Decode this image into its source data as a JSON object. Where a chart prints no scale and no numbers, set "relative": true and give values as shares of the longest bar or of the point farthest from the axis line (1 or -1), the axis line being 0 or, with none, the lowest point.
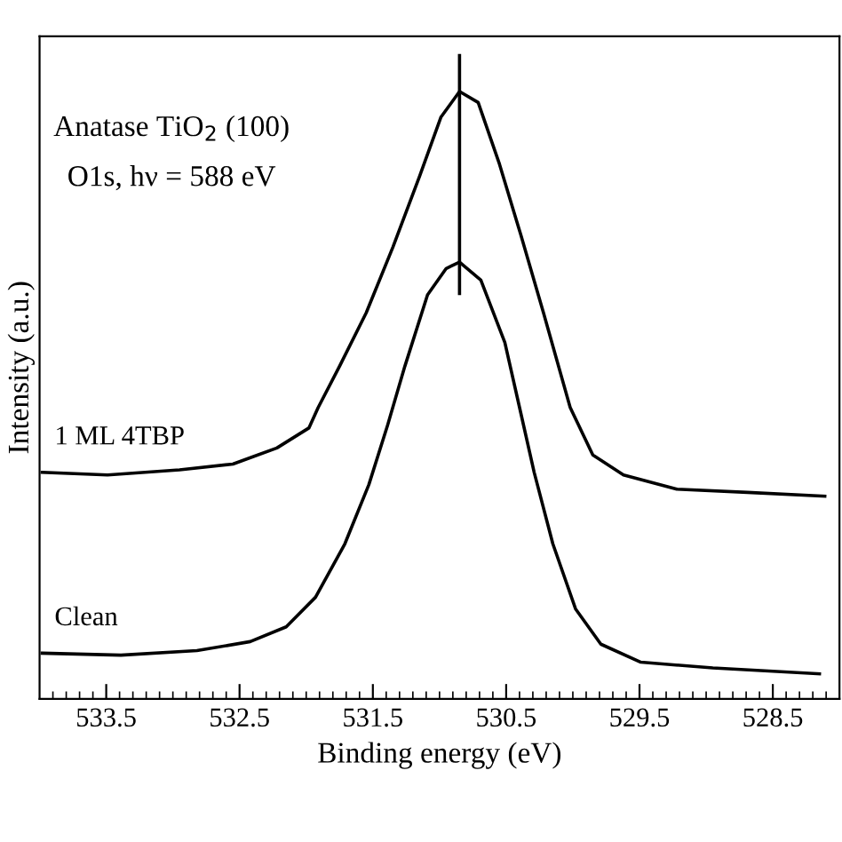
{
  "chart_data": {
    "type": "line",
    "relative": true,
    "xlabel": "Binding energy (eV)",
    "ylabel": "Intensity (a.u.)",
    "annotations": [
      "Anatase TiO$_{2}$ (100)",
      "O1s, hν = 588 eV"
    ],
    "xlim": [
      534.0,
      528.0
    ],
    "xticks": [
      {
        "value": 533.9,
        "label": null
      },
      {
        "value": 533.8,
        "label": null
      },
      {
        "value": 533.7,
        "label": null
      },
      {
        "value": 533.6,
        "label": null
      },
      533.5,
      {
        "value": 533.4,
        "label": null
      },
      {
        "value": 533.3,
        "label": null
      },
      {
        "value": 533.2,
        "label": null
      },
      {
        "value": 533.1,
        "label": null
      },
      {
        "value": 533.0,
        "label": null
      },
      {
        "value": 532.9,
        "label": null
      },
      {
        "value": 532.8,
        "label": null
      },
      {
        "value": 532.7,
        "label": null
      },
      {
        "value": 532.6,
        "label": null
      },
      532.5,
      {
        "value": 532.4,
        "label": null
      },
      {
        "value": 532.3,
        "label": null
      },
      {
        "value": 532.2,
        "label": null
      },
      {
        "value": 532.1,
        "label": null
      },
      {
        "value": 532.0,
        "label": null
      },
      {
        "value": 531.9,
        "label": null
      },
      {
        "value": 531.8,
        "label": null
      },
      {
        "value": 531.7,
        "label": null
      },
      {
        "value": 531.6,
        "label": null
      },
      531.5,
      {
        "value": 531.4,
        "label": null
      },
      {
        "value": 531.3,
        "label": null
      },
      {
        "value": 531.2,
        "label": null
      },
      {
        "value": 531.1,
        "label": null
      },
      {
        "value": 531.0,
        "label": null
      },
      {
        "value": 530.9,
        "label": null
      },
      {
        "value": 530.8,
        "label": null
      },
      {
        "value": 530.7,
        "label": null
      },
      {
        "value": 530.6,
        "label": null
      },
      530.5,
      {
        "value": 530.4,
        "label": null
      },
      {
        "value": 530.3,
        "label": null
      },
      {
        "value": 530.2,
        "label": null
      },
      {
        "value": 530.1,
        "label": null
      },
      {
        "value": 530.0,
        "label": null
      },
      {
        "value": 529.9,
        "label": null
      },
      {
        "value": 529.8,
        "label": null
      },
      {
        "value": 529.7,
        "label": null
      },
      {
        "value": 529.6,
        "label": null
      },
      529.5,
      {
        "value": 529.4,
        "label": null
      },
      {
        "value": 529.3,
        "label": null
      },
      {
        "value": 529.2,
        "label": null
      },
      {
        "value": 529.1,
        "label": null
      },
      {
        "value": 529.0,
        "label": null
      },
      {
        "value": 528.9,
        "label": null
      },
      {
        "value": 528.8,
        "label": null
      },
      {
        "value": 528.7,
        "label": null
      },
      {
        "value": 528.6,
        "label": null
      },
      528.5,
      {
        "value": 528.4,
        "label": null
      },
      {
        "value": 528.3,
        "label": null
      },
      {
        "value": 528.2,
        "label": null
      },
      {
        "value": 528.1,
        "label": null
      }
    ],
    "grid": false,
    "legend": false,
    "line_style": "solid",
    "marker": "none",
    "series": [
      {
        "name": "1 ML 4TBP",
        "color": "#000000",
        "x": [
          533.98,
          533.49,
          532.95,
          532.55,
          532.22,
          531.98,
          531.91,
          531.75,
          531.55,
          531.35,
          531.15,
          530.99,
          530.85,
          530.71,
          530.55,
          530.39,
          530.22,
          530.02,
          529.85,
          529.62,
          529.22,
          528.69,
          528.11
        ],
        "values": [
          0.352,
          0.348,
          0.356,
          0.365,
          0.39,
          0.421,
          0.453,
          0.517,
          0.6,
          0.702,
          0.812,
          0.904,
          0.944,
          0.927,
          0.831,
          0.721,
          0.6,
          0.453,
          0.379,
          0.348,
          0.326,
          0.321,
          0.315
        ]
      },
      {
        "name": "Clean",
        "color": "#000000",
        "x": [
          533.98,
          533.39,
          532.82,
          532.42,
          532.15,
          531.93,
          531.71,
          531.53,
          531.39,
          531.26,
          531.09,
          530.95,
          530.85,
          530.69,
          530.51,
          530.39,
          530.29,
          530.15,
          529.98,
          529.79,
          529.49,
          528.95,
          528.15
        ],
        "values": [
          0.071,
          0.068,
          0.075,
          0.089,
          0.112,
          0.158,
          0.241,
          0.333,
          0.425,
          0.517,
          0.628,
          0.669,
          0.679,
          0.651,
          0.554,
          0.444,
          0.352,
          0.241,
          0.14,
          0.085,
          0.057,
          0.048,
          0.039
        ]
      },
      {
        "color": "#000000",
        "x": [
          530.85,
          530.85
        ],
        "values": [
          0.63,
          1.0
        ]
      }
    ]
  }
}
